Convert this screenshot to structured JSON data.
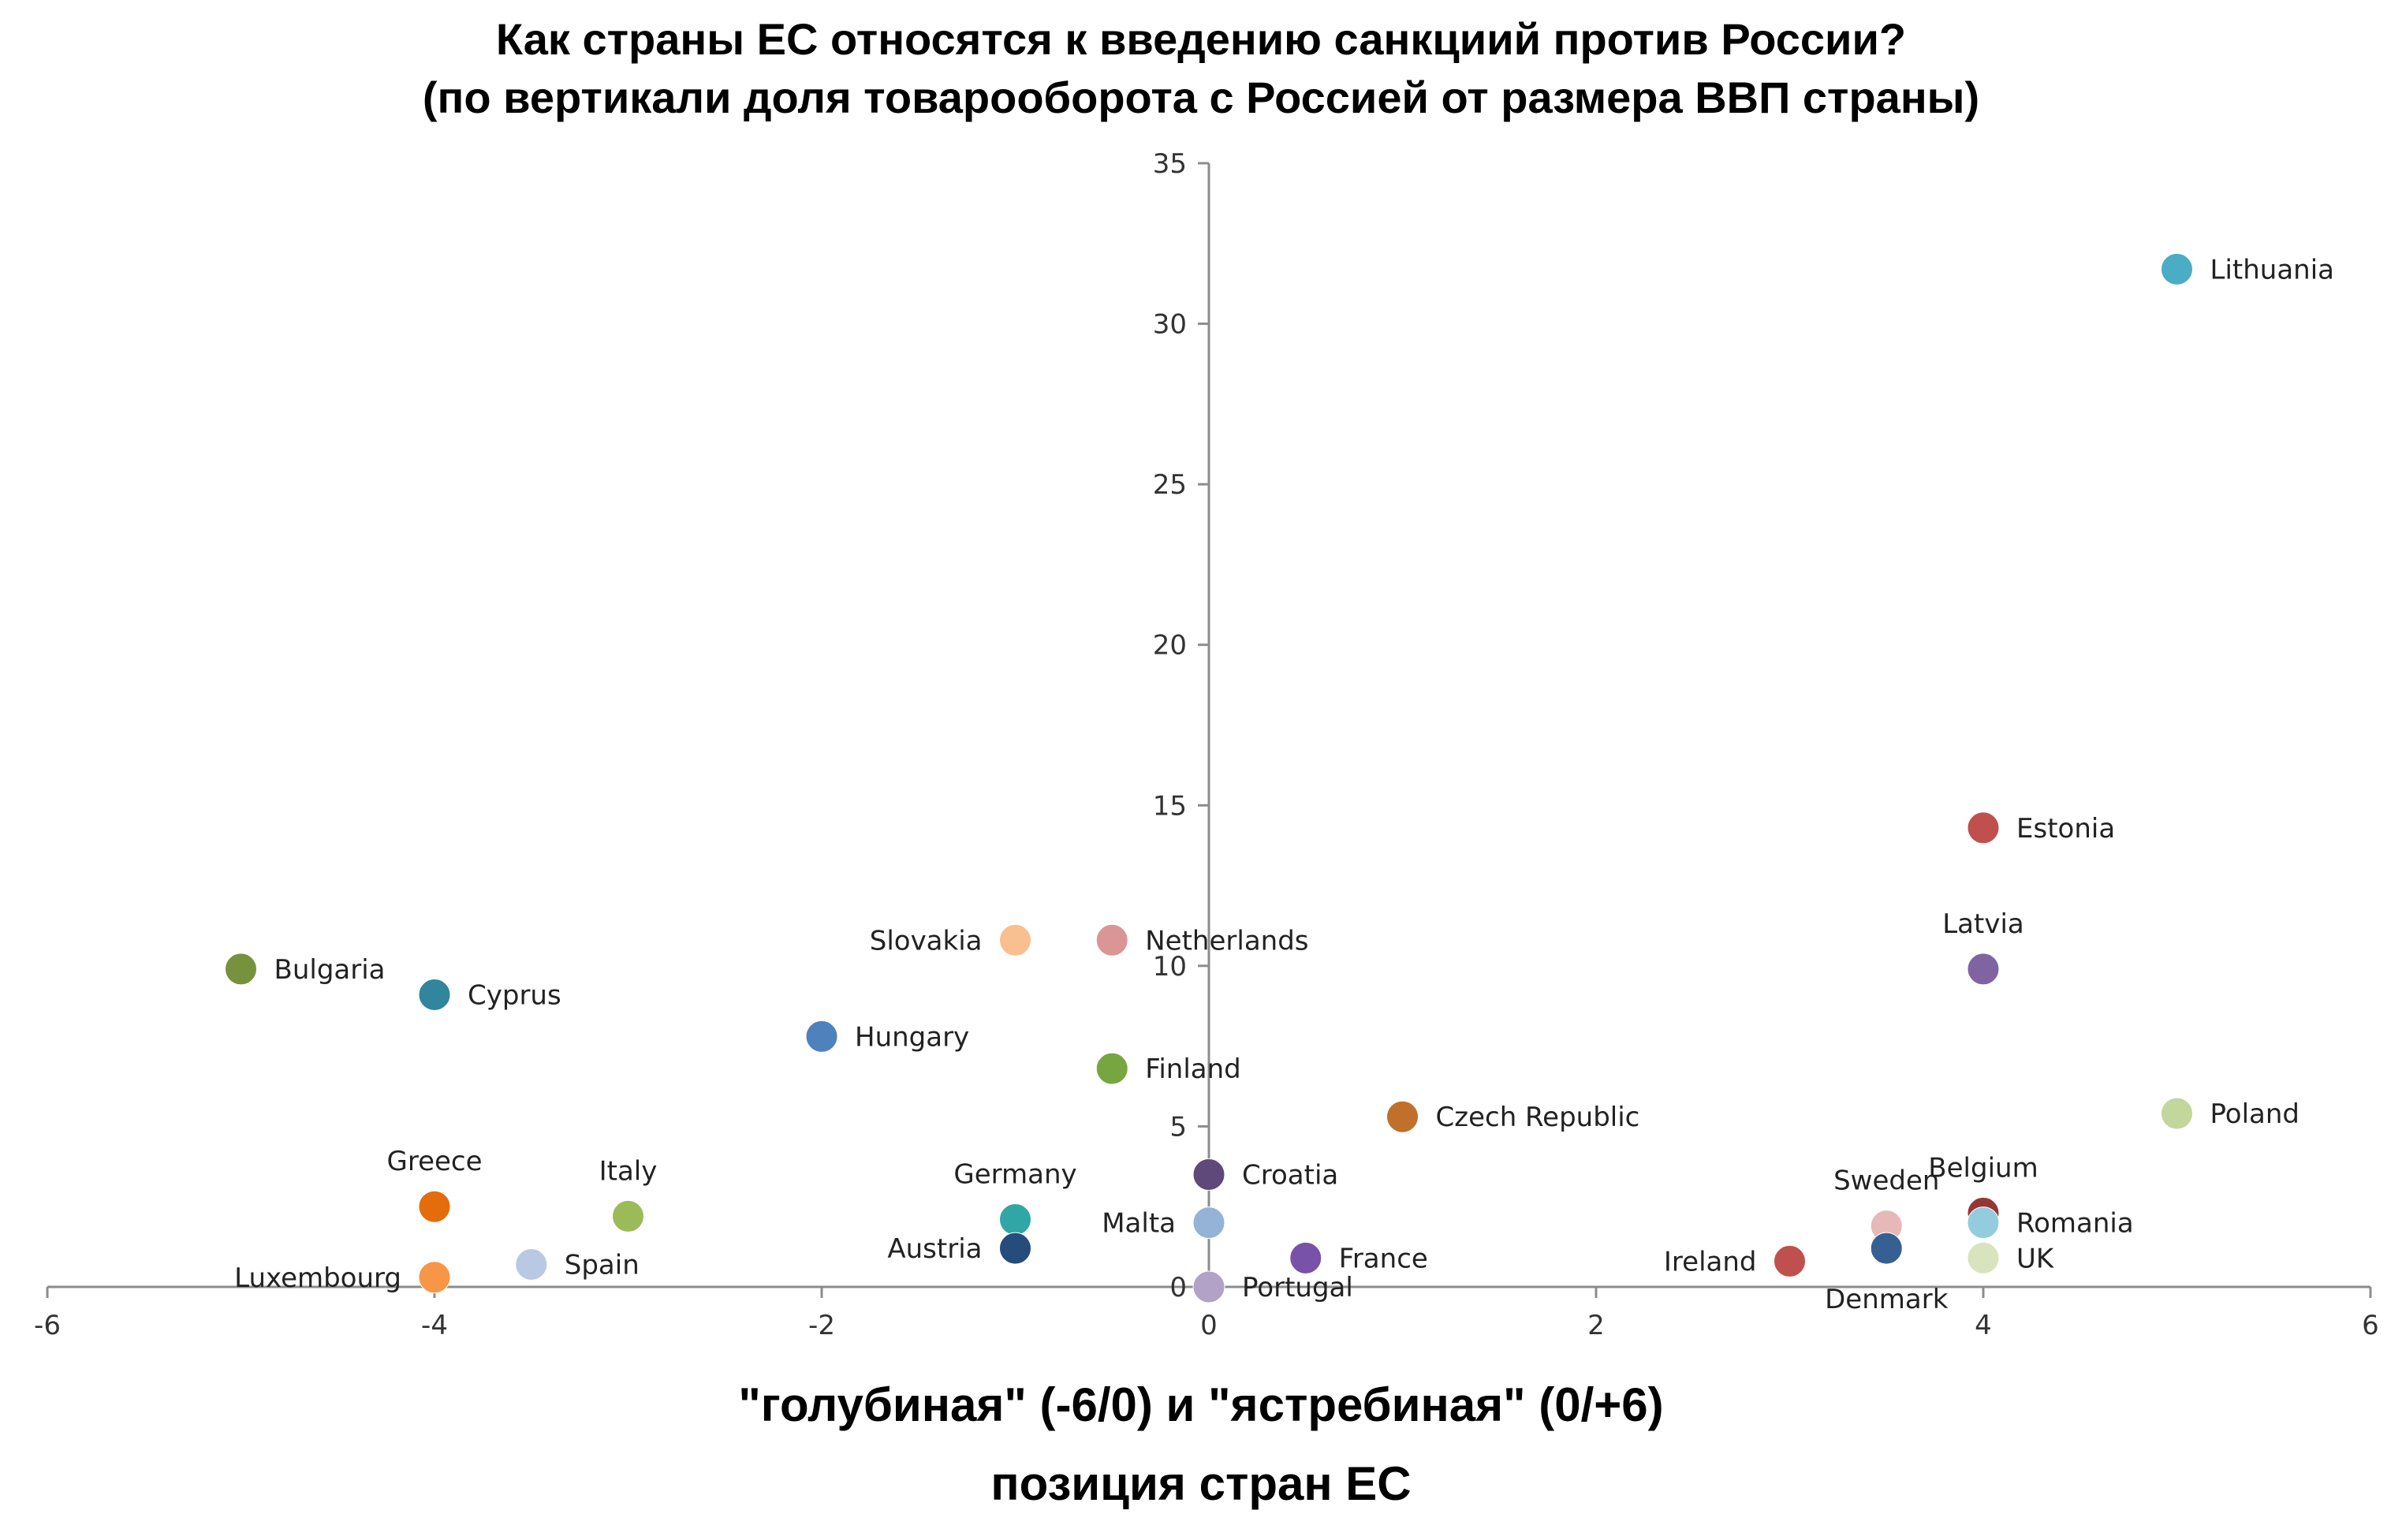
{
  "chart_data": {
    "type": "scatter",
    "title": "Как страны ЕС относятся к введению санкциий против России?",
    "subtitle": "(по вертикали  доля   товарооборота с Россией от размера ВВП страны)",
    "xlabel": "\"голубиная\" (-6/0) и \"ястребиная\" (0/+6)",
    "xlabel2": "позиция стран ЕС",
    "ylabel": "",
    "xlim": [
      -6,
      6
    ],
    "ylim": [
      0,
      35
    ],
    "xticks": [
      -6,
      -4,
      -2,
      0,
      2,
      4,
      6
    ],
    "yticks": [
      0,
      5,
      10,
      15,
      20,
      25,
      30,
      35
    ],
    "points": [
      {
        "name": "Lithuania",
        "x": 5,
        "y": 31.7,
        "color": "#4bacc6",
        "label_pos": "right"
      },
      {
        "name": "Estonia",
        "x": 4,
        "y": 14.3,
        "color": "#c0504d",
        "label_pos": "right"
      },
      {
        "name": "Latvia",
        "x": 4,
        "y": 9.9,
        "color": "#8064a2",
        "label_pos": "above"
      },
      {
        "name": "Poland",
        "x": 5,
        "y": 5.4,
        "color": "#c3d69b",
        "label_pos": "right"
      },
      {
        "name": "Belgium",
        "x": 4,
        "y": 2.3,
        "color": "#953735",
        "label_pos": "above"
      },
      {
        "name": "Romania",
        "x": 4,
        "y": 2.0,
        "color": "#93cddd",
        "label_pos": "right"
      },
      {
        "name": "UK",
        "x": 4,
        "y": 0.9,
        "color": "#d7e4bd",
        "label_pos": "right"
      },
      {
        "name": "Sweden",
        "x": 3.5,
        "y": 1.9,
        "color": "#e6b9b8",
        "label_pos": "above"
      },
      {
        "name": "Denmark",
        "x": 3.5,
        "y": 1.2,
        "color": "#376092",
        "label_pos": "below"
      },
      {
        "name": "Ireland",
        "x": 3,
        "y": 0.8,
        "color": "#c0504d",
        "label_pos": "left"
      },
      {
        "name": "Czech Republic",
        "x": 1,
        "y": 5.3,
        "color": "#c0702a",
        "label_pos": "right"
      },
      {
        "name": "France",
        "x": 0.5,
        "y": 0.9,
        "color": "#7851a9",
        "label_pos": "right"
      },
      {
        "name": "Croatia",
        "x": 0,
        "y": 3.5,
        "color": "#5f497a",
        "label_pos": "right"
      },
      {
        "name": "Malta",
        "x": 0,
        "y": 2.0,
        "color": "#95b3d7",
        "label_pos": "left"
      },
      {
        "name": "Portugal",
        "x": 0,
        "y": 0.0,
        "color": "#b2a2c7",
        "label_pos": "right"
      },
      {
        "name": "Netherlands",
        "x": -0.5,
        "y": 10.8,
        "color": "#d99694",
        "label_pos": "right"
      },
      {
        "name": "Finland",
        "x": -0.5,
        "y": 6.8,
        "color": "#77a640",
        "label_pos": "right"
      },
      {
        "name": "Slovakia",
        "x": -1,
        "y": 10.8,
        "color": "#fabf8f",
        "label_pos": "left"
      },
      {
        "name": "Germany",
        "x": -1,
        "y": 2.1,
        "color": "#31a6a6",
        "label_pos": "above"
      },
      {
        "name": "Austria",
        "x": -1,
        "y": 1.2,
        "color": "#254c7a",
        "label_pos": "left"
      },
      {
        "name": "Hungary",
        "x": -2,
        "y": 7.8,
        "color": "#4f81bd",
        "label_pos": "right"
      },
      {
        "name": "Italy",
        "x": -3,
        "y": 2.2,
        "color": "#9bbb59",
        "label_pos": "above"
      },
      {
        "name": "Spain",
        "x": -3.5,
        "y": 0.7,
        "color": "#b9c9e3",
        "label_pos": "right"
      },
      {
        "name": "Greece",
        "x": -4,
        "y": 2.5,
        "color": "#e46c0a",
        "label_pos": "above"
      },
      {
        "name": "Cyprus",
        "x": -4,
        "y": 9.1,
        "color": "#31859c",
        "label_pos": "right"
      },
      {
        "name": "Luxembourg",
        "x": -4,
        "y": 0.3,
        "color": "#f79646",
        "label_pos": "left"
      },
      {
        "name": "Bulgaria",
        "x": -5,
        "y": 9.9,
        "color": "#76923c",
        "label_pos": "right"
      }
    ]
  }
}
